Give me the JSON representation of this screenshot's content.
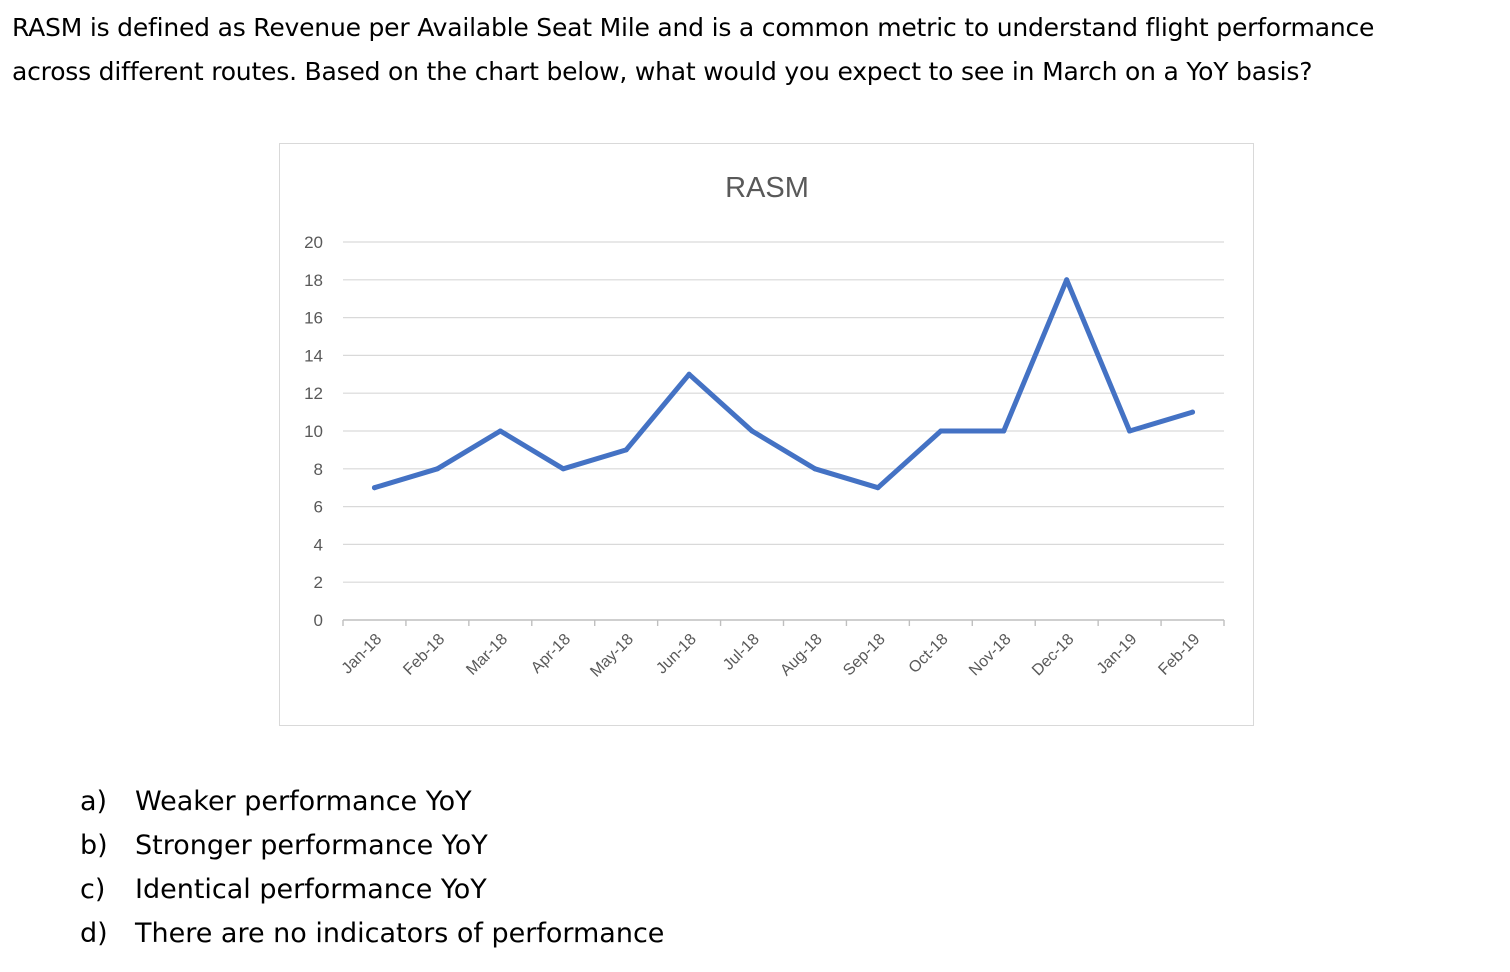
{
  "question": {
    "line1": "RASM is defined as Revenue per Available Seat Mile and is a common metric to understand flight performance",
    "line2": "across different routes. Based on the chart below, what would you expect to see in March on a YoY basis?"
  },
  "chart_data": {
    "type": "line",
    "title": "RASM",
    "xlabel": "",
    "ylabel": "",
    "categories": [
      "Jan-18",
      "Feb-18",
      "Mar-18",
      "Apr-18",
      "May-18",
      "Jun-18",
      "Jul-18",
      "Aug-18",
      "Sep-18",
      "Oct-18",
      "Nov-18",
      "Dec-18",
      "Jan-19",
      "Feb-19"
    ],
    "series": [
      {
        "values": [
          7,
          8,
          10,
          8,
          9,
          13,
          10,
          8,
          7,
          10,
          10,
          18,
          10,
          11
        ],
        "color": "#4472c4"
      }
    ],
    "ylim": [
      0,
      20
    ],
    "yticks": [
      0,
      2,
      4,
      6,
      8,
      10,
      12,
      14,
      16,
      18,
      20
    ],
    "grid": true,
    "legend": "none",
    "colors": {
      "gridline": "#d9d9d9",
      "axis": "#bfbfbf",
      "tick_label": "#595959",
      "title": "#595959"
    }
  },
  "answers": [
    {
      "letter": "a)",
      "text": "Weaker performance YoY"
    },
    {
      "letter": "b)",
      "text": "Stronger performance YoY"
    },
    {
      "letter": "c)",
      "text": "Identical performance YoY"
    },
    {
      "letter": "d)",
      "text": "There are no indicators of performance"
    }
  ]
}
